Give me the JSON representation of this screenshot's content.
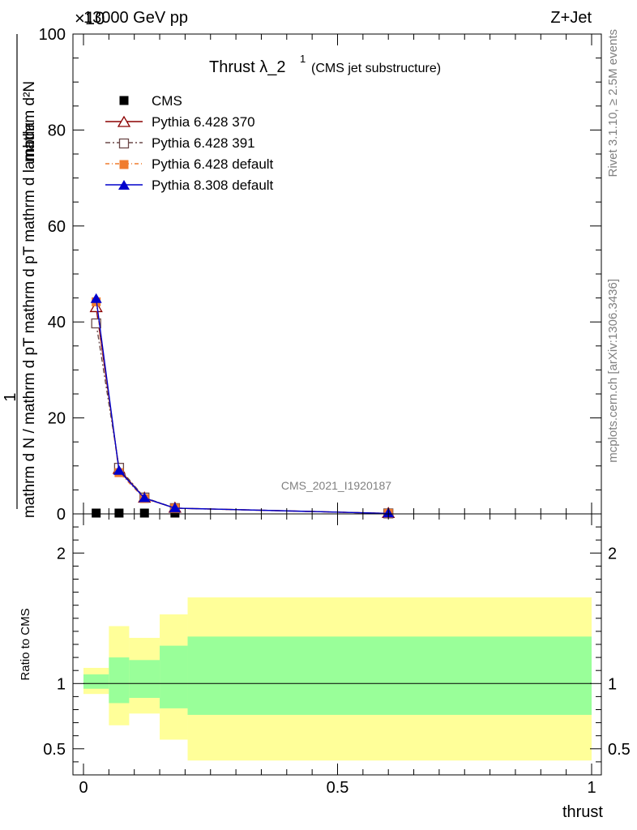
{
  "header": {
    "left": "13000 GeV pp",
    "right": "Z+Jet",
    "exponent_mark": "×10"
  },
  "side_labels": {
    "rivet": "Rivet 3.1.10, ≥ 2.5M events",
    "mcplots": "mcplots.cern.ch [arXiv:1306.3436]"
  },
  "chart_data": [
    {
      "type": "line",
      "title": "Thrust λ_2",
      "title_sup": "1",
      "subtitle": "(CMS jet substructure)",
      "watermark": "CMS_2021_I1920187",
      "ylabel_top": "1",
      "ylabel_num": "mathrm d²N",
      "ylabel_den": "mathrm d N / mathrm d pT mathrm d pT mathrm d lambda",
      "xlim": [
        0,
        1
      ],
      "ylim": [
        0,
        100
      ],
      "yticks": [
        0,
        20,
        40,
        60,
        80,
        100
      ],
      "ytick_labels": [
        "0",
        "20",
        "40",
        "60",
        "80",
        "100"
      ],
      "legend_position": "top-left",
      "series": [
        {
          "name": "CMS",
          "color": "#000000",
          "marker": "square-filled",
          "x": [
            0.025,
            0.07,
            0.12,
            0.18
          ],
          "y": [
            0.0,
            0.0,
            0.0,
            0.0
          ]
        },
        {
          "name": "Pythia 6.428 370",
          "color": "#8b0000",
          "marker": "triangle-open",
          "dash": "",
          "x": [
            0.025,
            0.07,
            0.12,
            0.18,
            0.6
          ],
          "y": [
            43.0,
            9.3,
            3.3,
            1.2,
            0.1
          ]
        },
        {
          "name": "Pythia 6.428 391",
          "color": "#6b4848",
          "marker": "square-open",
          "dash": "6,3,2,3",
          "x": [
            0.025,
            0.07,
            0.12,
            0.18,
            0.6
          ],
          "y": [
            39.7,
            9.6,
            3.4,
            1.2,
            0.1
          ]
        },
        {
          "name": "Pythia 6.428 default",
          "color": "#f07c2e",
          "marker": "square-filled",
          "dash": "5,3,1,3",
          "x": [
            0.025,
            0.07,
            0.12,
            0.18,
            0.6
          ],
          "y": [
            44.2,
            8.6,
            3.2,
            1.2,
            0.1
          ]
        },
        {
          "name": "Pythia 8.308 default",
          "color": "#0000cc",
          "marker": "triangle-filled",
          "dash": "",
          "x": [
            0.025,
            0.07,
            0.12,
            0.18,
            0.6
          ],
          "y": [
            44.8,
            9.0,
            3.3,
            1.2,
            0.1
          ]
        }
      ]
    },
    {
      "type": "area",
      "ylabel": "Ratio to CMS",
      "xlabel": "thrust",
      "xlim": [
        0,
        1
      ],
      "ylim": [
        0.3,
        2.3
      ],
      "yticks": [
        0.5,
        1,
        2
      ],
      "ytick_labels": [
        "0.5",
        "1",
        "2"
      ],
      "xticks": [
        0,
        0.5,
        1
      ],
      "xtick_labels": [
        "0",
        "0.5",
        "1"
      ],
      "reference_line": 1,
      "bins": [
        {
          "x0": 0.0,
          "x1": 0.05,
          "green": [
            0.96,
            1.07
          ],
          "yellow": [
            0.92,
            1.12
          ]
        },
        {
          "x0": 0.05,
          "x1": 0.09,
          "green": [
            0.85,
            1.2
          ],
          "yellow": [
            0.68,
            1.44
          ]
        },
        {
          "x0": 0.09,
          "x1": 0.15,
          "green": [
            0.89,
            1.18
          ],
          "yellow": [
            0.77,
            1.35
          ]
        },
        {
          "x0": 0.15,
          "x1": 0.205,
          "green": [
            0.81,
            1.29
          ],
          "yellow": [
            0.57,
            1.53
          ]
        },
        {
          "x0": 0.205,
          "x1": 1.0,
          "green": [
            0.76,
            1.36
          ],
          "yellow": [
            0.41,
            1.66
          ]
        }
      ],
      "band_colors": {
        "inner": "#99ff99",
        "outer": "#ffff99"
      }
    }
  ]
}
